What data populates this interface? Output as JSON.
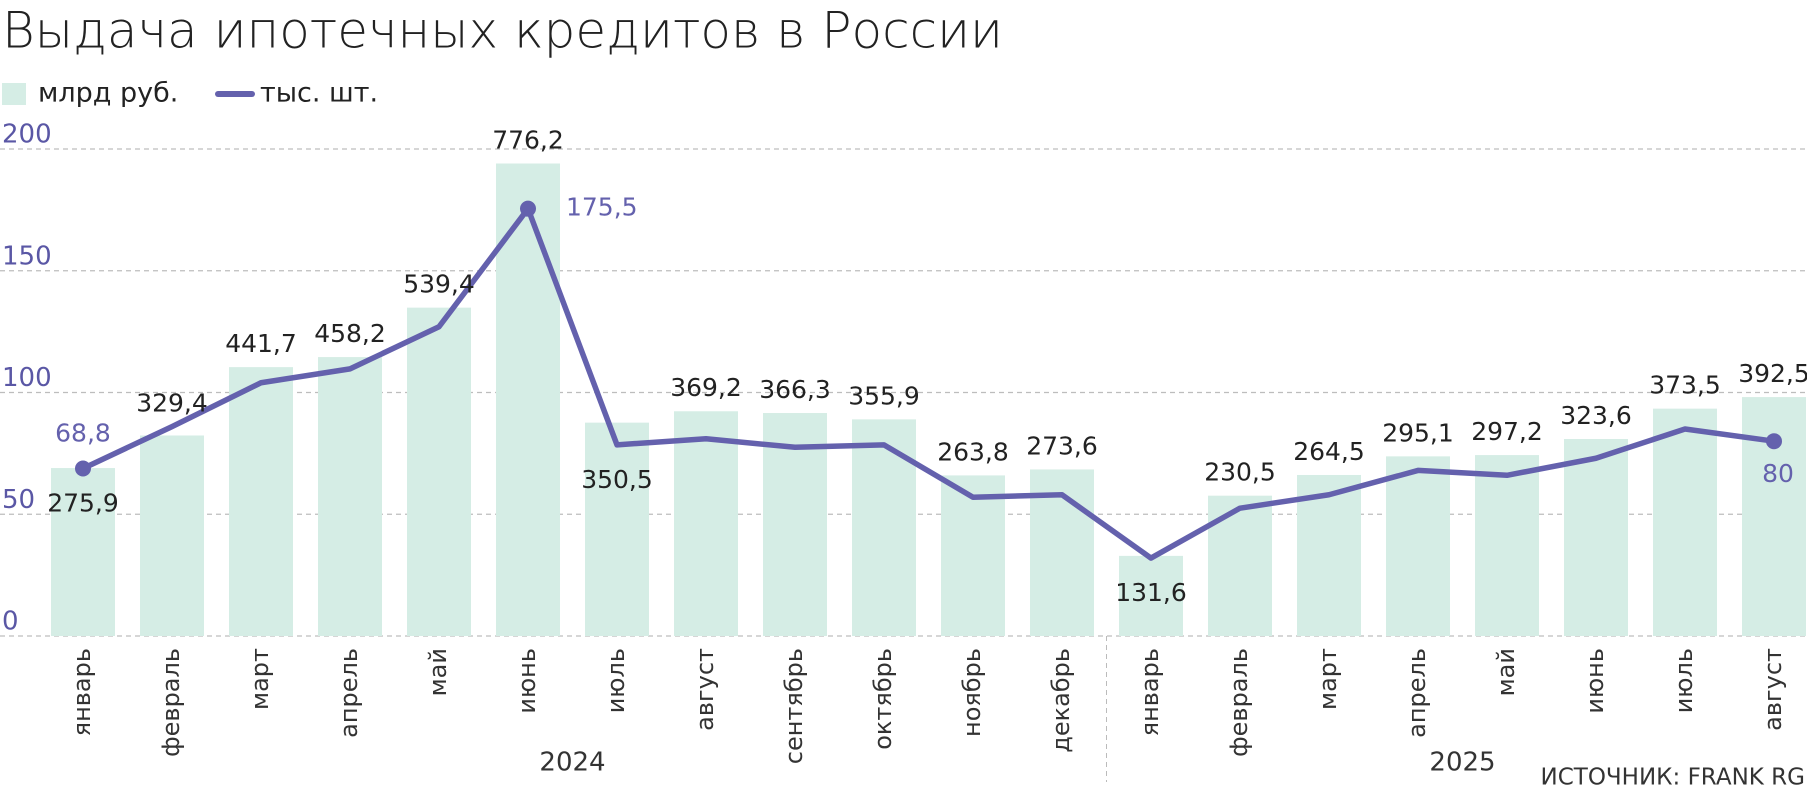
{
  "chart_data": {
    "type": "bar-line",
    "title": "Выдача ипотечных кредитов в России",
    "source": "ИСТОЧНИК: FRANK RG",
    "categories": [
      "январь",
      "февраль",
      "март",
      "апрель",
      "май",
      "июнь",
      "июль",
      "август",
      "сентябрь",
      "октябрь",
      "ноябрь",
      "декабрь",
      "январь",
      "февраль",
      "март",
      "апрель",
      "май",
      "июнь",
      "июль",
      "август"
    ],
    "year_labels": [
      "2024",
      "2025"
    ],
    "ylim": [
      0,
      200
    ],
    "yticks": [
      0,
      50,
      100,
      150,
      200
    ],
    "y2lim": [
      0,
      800
    ],
    "grid": true,
    "series": [
      {
        "name": "млрд руб.",
        "color": "#d5ede5",
        "axis": "y2",
        "values": [
          275.9,
          329.4,
          441.7,
          458.2,
          539.4,
          776.2,
          350.5,
          369.2,
          366.3,
          355.9,
          263.8,
          273.6,
          131.6,
          230.5,
          264.5,
          295.1,
          297.2,
          323.6,
          373.5,
          392.5
        ],
        "value_labels": [
          "275,9",
          "329,4",
          "441,7",
          "458,2",
          "539,4",
          "776,2",
          "350,5",
          "369,2",
          "366,3",
          "355,9",
          "263,8",
          "273,6",
          "131,6",
          "230,5",
          "264,5",
          "295,1",
          "297,2",
          "323,6",
          "373,5",
          "392,5"
        ]
      },
      {
        "name": "тыс. шт.",
        "color": "#6461ad",
        "values": [
          68.8,
          86,
          104,
          109.7,
          127,
          175.5,
          78.5,
          81,
          77.5,
          78.5,
          57,
          58,
          32,
          52.5,
          58,
          68,
          66,
          73,
          85,
          80
        ],
        "value_labels": [
          "68,8",
          null,
          null,
          null,
          null,
          "175,5",
          null,
          null,
          null,
          null,
          null,
          null,
          null,
          null,
          null,
          null,
          null,
          null,
          null,
          "80"
        ]
      }
    ]
  }
}
